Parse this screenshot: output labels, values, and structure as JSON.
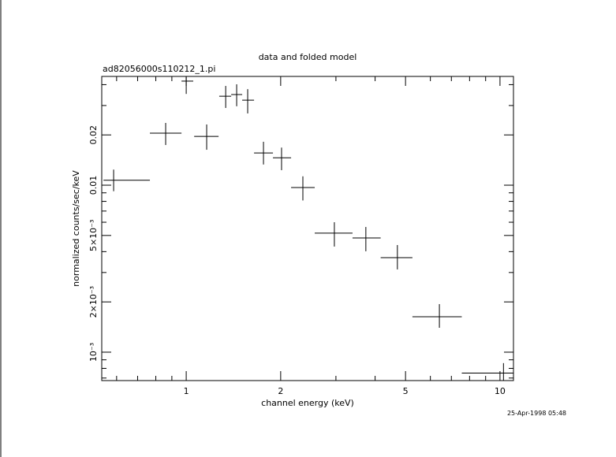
{
  "chart_data": {
    "type": "errorbar",
    "title": "data and folded model",
    "subtitle": "ad82056000s110212_1.pi",
    "xlabel": "channel energy (keV)",
    "ylabel": "normalized counts/sec/keV",
    "timestamp": "25-Apr-1998 05:48",
    "xscale": "log",
    "yscale": "log",
    "xlim": [
      0.538,
      11.04
    ],
    "ylim": [
      0.000676,
      0.0448
    ],
    "xticks": [
      1,
      2,
      5,
      10
    ],
    "xminorticks": [
      0.6,
      0.7,
      0.8,
      0.9,
      3,
      4,
      6,
      7,
      8,
      9
    ],
    "yticks": [
      {
        "value": 0.001,
        "label": "10⁻³"
      },
      {
        "value": 0.002,
        "label": "2×10⁻³"
      },
      {
        "value": 0.005,
        "label": "5×10⁻³"
      },
      0.01,
      0.02
    ],
    "yminorticks": [
      0.0007,
      0.0008,
      0.0009,
      0.003,
      0.004,
      0.006,
      0.007,
      0.008,
      0.009,
      0.03,
      0.04
    ],
    "color": "#000000",
    "x": [
      0.587,
      0.86,
      1.0,
      1.162,
      1.336,
      1.448,
      1.57,
      1.763,
      2.013,
      2.354,
      2.966,
      3.737,
      4.71,
      6.41,
      10.26
    ],
    "xlo": [
      0.545,
      0.766,
      0.966,
      1.06,
      1.274,
      1.391,
      1.508,
      1.645,
      1.89,
      2.159,
      2.568,
      3.389,
      4.166,
      5.259,
      7.555
    ],
    "xhi": [
      0.766,
      0.966,
      1.053,
      1.268,
      1.391,
      1.508,
      1.645,
      1.89,
      2.159,
      2.568,
      3.389,
      4.166,
      5.259,
      7.555,
      11.2
    ],
    "y": [
      0.0107,
      0.0205,
      0.042,
      0.0196,
      0.0341,
      0.0349,
      0.0323,
      0.0156,
      0.0146,
      0.00968,
      0.00516,
      0.00483,
      0.00368,
      0.00163,
      0.00075
    ],
    "ylo": [
      0.0092,
      0.0174,
      0.0352,
      0.0163,
      0.029,
      0.0297,
      0.0269,
      0.0133,
      0.0123,
      0.0081,
      0.00429,
      0.00402,
      0.00313,
      0.0014,
      0.00065
    ],
    "yhi": [
      0.0124,
      0.0236,
      0.046,
      0.0231,
      0.0393,
      0.0402,
      0.0376,
      0.0182,
      0.0168,
      0.0113,
      0.006,
      0.00562,
      0.00438,
      0.00194,
      0.00086
    ]
  }
}
